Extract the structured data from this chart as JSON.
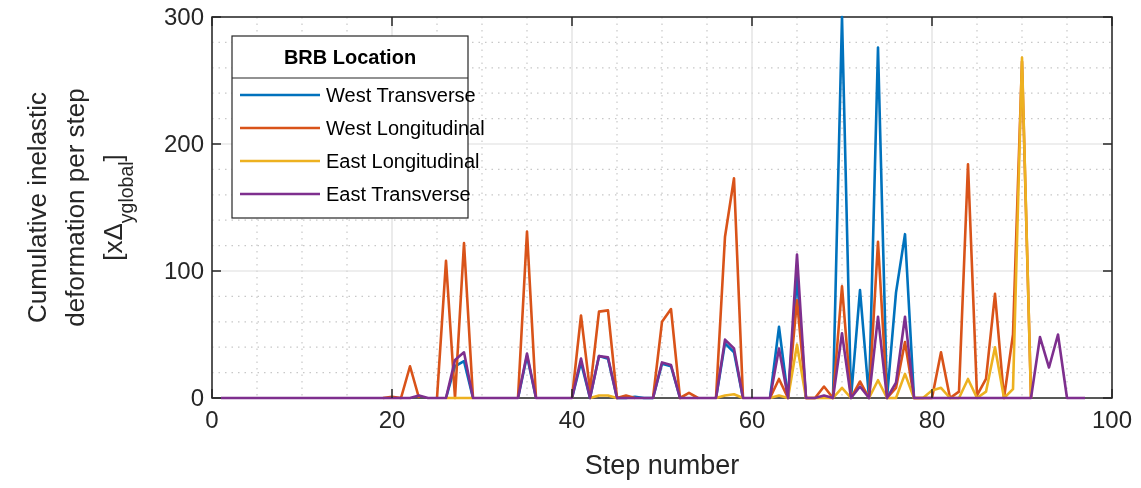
{
  "chart_data": {
    "type": "line",
    "xlabel": "Step number",
    "ylabel": "Cumulative inelastic deformation per step [xΔ$_{yglobal}$]",
    "legend_title": "BRB Location",
    "legend": "top left",
    "grid": true,
    "xlim": [
      0,
      100
    ],
    "xticks": [
      0,
      20,
      40,
      60,
      80,
      100
    ],
    "ylim": [
      0,
      300
    ],
    "yticks": [
      0,
      100,
      200,
      300
    ],
    "x": [
      1,
      2,
      3,
      4,
      5,
      6,
      7,
      8,
      9,
      10,
      11,
      12,
      13,
      14,
      15,
      16,
      17,
      18,
      19,
      20,
      21,
      22,
      23,
      24,
      25,
      26,
      27,
      28,
      29,
      30,
      31,
      32,
      33,
      34,
      35,
      36,
      37,
      38,
      39,
      40,
      41,
      42,
      43,
      44,
      45,
      46,
      47,
      48,
      49,
      50,
      51,
      52,
      53,
      54,
      55,
      56,
      57,
      58,
      59,
      60,
      61,
      62,
      63,
      64,
      65,
      66,
      67,
      68,
      69,
      70,
      71,
      72,
      73,
      74,
      75,
      76,
      77,
      78,
      79,
      80,
      81,
      82,
      83,
      84,
      85,
      86,
      87,
      88,
      89,
      90,
      91,
      92,
      93,
      94,
      95,
      96,
      97
    ],
    "series": [
      {
        "name": "West Transverse",
        "color": "#0072bd",
        "values": [
          null,
          null,
          null,
          null,
          null,
          null,
          null,
          null,
          null,
          null,
          null,
          null,
          null,
          null,
          null,
          null,
          null,
          null,
          null,
          null,
          null,
          null,
          null,
          null,
          null,
          0,
          25,
          29,
          0,
          null,
          null,
          null,
          null,
          0,
          33,
          0,
          null,
          null,
          null,
          0,
          28,
          0,
          33,
          31,
          0,
          0,
          1,
          0,
          0,
          27,
          25,
          0,
          null,
          null,
          null,
          0,
          43,
          36,
          0,
          null,
          null,
          0,
          56,
          0,
          95,
          0,
          null,
          null,
          0,
          300,
          0,
          85,
          0,
          276,
          0,
          83,
          129,
          0,
          null,
          null,
          null,
          null,
          null,
          null,
          null,
          null,
          null,
          null,
          null,
          null,
          null,
          null,
          null,
          null,
          null,
          null,
          null
        ]
      },
      {
        "name": "West Longitudinal",
        "color": "#d95319",
        "values": [
          null,
          null,
          null,
          null,
          null,
          null,
          null,
          null,
          null,
          null,
          null,
          null,
          null,
          null,
          null,
          null,
          null,
          null,
          0,
          1,
          0,
          25,
          0,
          null,
          0,
          108,
          0,
          122,
          0,
          null,
          null,
          null,
          null,
          0,
          131,
          0,
          null,
          null,
          null,
          0,
          65,
          6,
          68,
          69,
          0,
          2,
          0,
          null,
          0,
          60,
          70,
          0,
          4,
          0,
          null,
          0,
          127,
          173,
          0,
          null,
          null,
          0,
          15,
          0,
          77,
          0,
          0,
          9,
          0,
          88,
          0,
          13,
          0,
          123,
          0,
          8,
          44,
          0,
          0,
          0,
          36,
          0,
          5,
          184,
          2,
          15,
          82,
          0,
          50,
          265,
          0,
          null,
          null,
          null,
          null,
          null,
          null
        ]
      },
      {
        "name": "East Longitudinal",
        "color": "#edb120",
        "values": [
          null,
          null,
          null,
          null,
          null,
          null,
          null,
          null,
          null,
          null,
          null,
          null,
          null,
          null,
          null,
          null,
          null,
          null,
          null,
          null,
          null,
          null,
          null,
          null,
          null,
          0,
          0,
          0,
          0,
          null,
          null,
          null,
          null,
          null,
          null,
          null,
          null,
          null,
          null,
          null,
          null,
          0,
          2,
          2,
          0,
          null,
          null,
          null,
          null,
          null,
          null,
          null,
          null,
          null,
          null,
          0,
          2,
          3,
          0,
          null,
          null,
          0,
          2,
          0,
          42,
          0,
          0,
          0,
          0,
          8,
          0,
          null,
          0,
          14,
          0,
          0,
          19,
          0,
          0,
          6,
          8,
          0,
          0,
          15,
          0,
          5,
          40,
          0,
          7,
          268,
          0,
          null,
          null,
          null,
          null,
          null,
          null
        ]
      },
      {
        "name": "East Transverse",
        "color": "#7e2f8e",
        "values": [
          0,
          0,
          0,
          0,
          0,
          0,
          0,
          0,
          0,
          0,
          0,
          0,
          0,
          0,
          0,
          0,
          0,
          0,
          0,
          0,
          0,
          0,
          2,
          0,
          0,
          0,
          30,
          36,
          0,
          0,
          0,
          0,
          0,
          0,
          35,
          0,
          0,
          0,
          0,
          0,
          31,
          0,
          33,
          32,
          0,
          0,
          0,
          0,
          0,
          28,
          26,
          0,
          0,
          0,
          0,
          0,
          46,
          39,
          0,
          0,
          0,
          0,
          39,
          0,
          113,
          0,
          0,
          2,
          0,
          51,
          0,
          9,
          0,
          64,
          0,
          12,
          64,
          0,
          0,
          0,
          0,
          0,
          0,
          0,
          0,
          0,
          0,
          0,
          0,
          0,
          0,
          48,
          24,
          50,
          0,
          0,
          0
        ]
      }
    ]
  }
}
